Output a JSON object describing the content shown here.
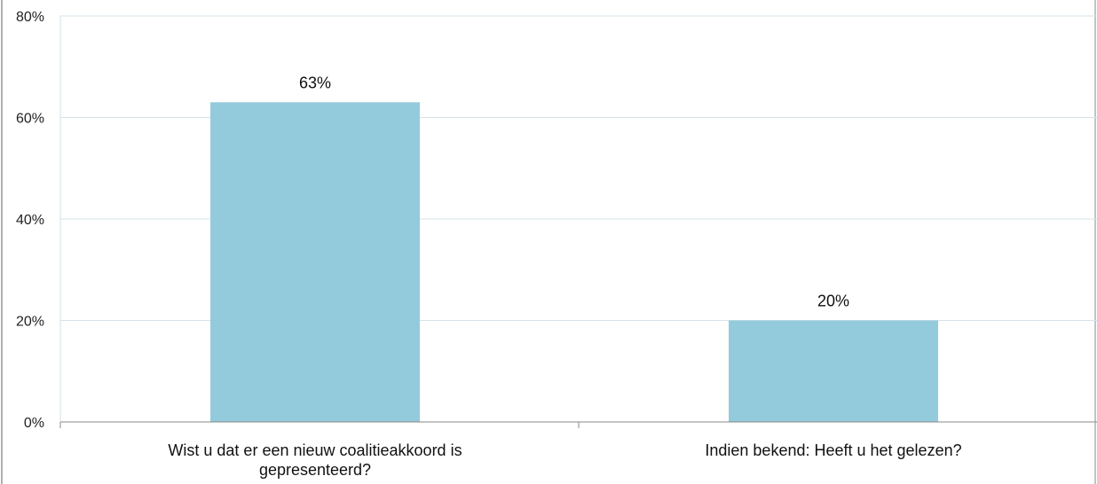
{
  "chart_data": {
    "type": "bar",
    "categories": [
      [
        "Wist u dat er een nieuw coalitieakkoord is",
        "gepresenteerd?"
      ],
      [
        "Indien bekend: Heeft u het gelezen?"
      ]
    ],
    "values": [
      63,
      20
    ],
    "data_labels": [
      "63%",
      "20%"
    ],
    "y_ticks": [
      0,
      20,
      40,
      60,
      80
    ],
    "y_tick_labels": [
      "0%",
      "20%",
      "40%",
      "60%",
      "80%"
    ],
    "ylim": [
      0,
      80
    ],
    "grid": true,
    "legend": "none",
    "colors": {
      "bar": "#94cbdc",
      "grid": "#d6e3ea",
      "axis": "#8a8a8a",
      "frame": "#b0b0b0"
    }
  }
}
